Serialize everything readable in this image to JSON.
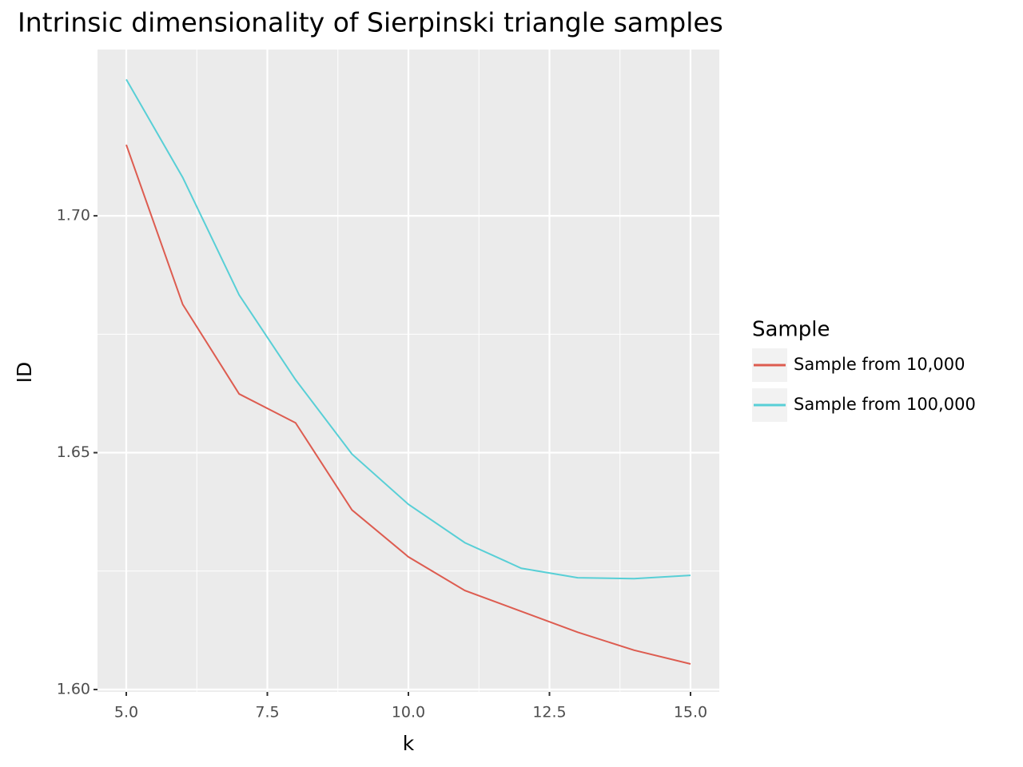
{
  "chart_data": {
    "type": "line",
    "title": "Intrinsic dimensionality of Sierpinski triangle samples",
    "x_label": "k",
    "y_label": "ID",
    "x": [
      5,
      6,
      7,
      8,
      9,
      10,
      11,
      12,
      13,
      14,
      15
    ],
    "series": [
      {
        "name": "Sample from 10,000",
        "color": "#dd5c50",
        "values": [
          1.715,
          1.6813,
          1.6624,
          1.6563,
          1.6379,
          1.628,
          1.6209,
          1.6165,
          1.6121,
          1.6083,
          1.6054
        ]
      },
      {
        "name": "Sample from 100,000",
        "color": "#58cfd6",
        "values": [
          1.7288,
          1.7081,
          1.6833,
          1.6654,
          1.6497,
          1.6391,
          1.631,
          1.6256,
          1.6236,
          1.6234,
          1.6241
        ]
      }
    ],
    "legend_title": "Sample",
    "xlim": [
      4.49,
      15.51
    ],
    "ylim": [
      1.5995,
      1.7351
    ],
    "xticks": [
      {
        "value": 5,
        "label": "5.0"
      },
      {
        "value": 7.5,
        "label": "7.5"
      },
      {
        "value": 10,
        "label": "10.0"
      },
      {
        "value": 12.5,
        "label": "12.5"
      },
      {
        "value": 15,
        "label": "15.0"
      }
    ],
    "yticks": [
      {
        "value": 1.6,
        "label": "1.60"
      },
      {
        "value": 1.65,
        "label": "1.65"
      },
      {
        "value": 1.7,
        "label": "1.70"
      }
    ],
    "grid": true,
    "legend_position": "right"
  }
}
